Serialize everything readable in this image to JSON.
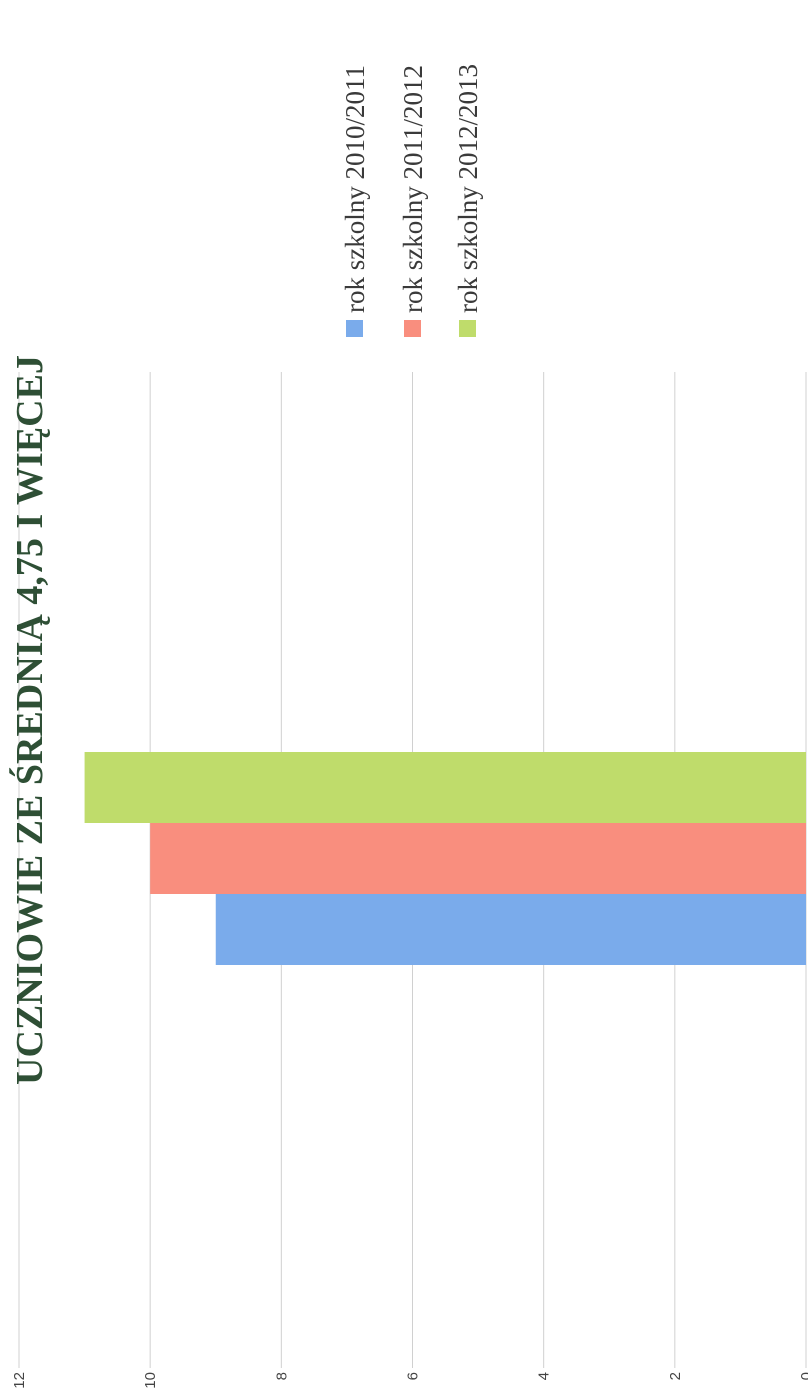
{
  "chart_data": {
    "type": "bar",
    "title": "UCZNIOWIE ZE ŚREDNIĄ 4,75 I WIĘCEJ",
    "categories": [
      ""
    ],
    "series": [
      {
        "name": "rok szkolny 2010/2011",
        "values": [
          9
        ],
        "color": "#7aabeb"
      },
      {
        "name": "rok szkolny 2011/2012",
        "values": [
          10
        ],
        "color": "#f98e7e"
      },
      {
        "name": "rok szkolny 2012/2013",
        "values": [
          11
        ],
        "color": "#bfdc6b"
      }
    ],
    "ylim": [
      0,
      12
    ],
    "yticks": [
      "0",
      "2",
      "4",
      "6",
      "8",
      "10",
      "12"
    ],
    "grid": true,
    "legend_position": "right",
    "orientation": "rotated-90-clockwise"
  }
}
